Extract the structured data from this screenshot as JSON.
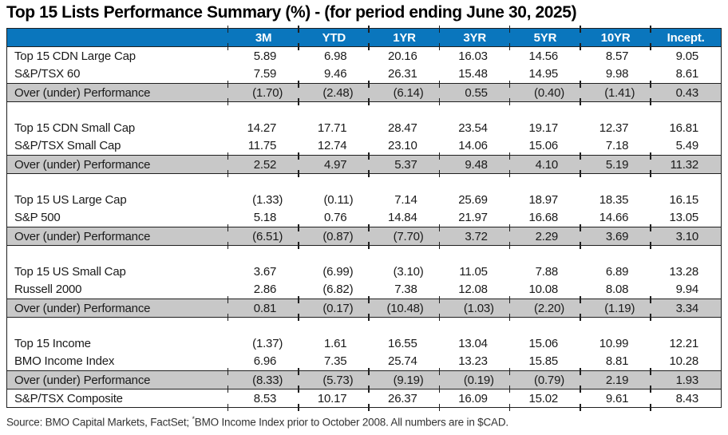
{
  "title": "Top 15 Lists Performance Summary (%) - (for period ending June 30, 2025)",
  "table": {
    "columns": [
      "",
      "3M",
      "YTD",
      "1YR",
      "3YR",
      "5YR",
      "10YR",
      "Incept."
    ],
    "rows": [
      {
        "type": "data",
        "label": "Top 15 CDN Large Cap",
        "values": [
          "5.89",
          "6.98",
          "20.16",
          "16.03",
          "14.56",
          "8.57",
          "9.05"
        ]
      },
      {
        "type": "data",
        "label": "S&P/TSX 60",
        "values": [
          "7.59",
          "9.46",
          "26.31",
          "15.48",
          "14.95",
          "9.98",
          "8.61"
        ]
      },
      {
        "type": "over",
        "label": "Over (under) Performance",
        "values": [
          "(1.70)",
          "(2.48)",
          "(6.14)",
          "0.55",
          "(0.40)",
          "(1.41)",
          "0.43"
        ]
      },
      {
        "type": "spacer"
      },
      {
        "type": "data",
        "label": "Top 15 CDN Small Cap",
        "values": [
          "14.27",
          "17.71",
          "28.47",
          "23.54",
          "19.17",
          "12.37",
          "16.81"
        ]
      },
      {
        "type": "data",
        "label": "S&P/TSX Small Cap",
        "values": [
          "11.75",
          "12.74",
          "23.10",
          "14.06",
          "15.06",
          "7.18",
          "5.49"
        ]
      },
      {
        "type": "over",
        "label": "Over (under) Performance",
        "values": [
          "2.52",
          "4.97",
          "5.37",
          "9.48",
          "4.10",
          "5.19",
          "11.32"
        ]
      },
      {
        "type": "spacer"
      },
      {
        "type": "data",
        "label": "Top 15 US Large Cap",
        "values": [
          "(1.33)",
          "(0.11)",
          "7.14",
          "25.69",
          "18.97",
          "18.35",
          "16.15"
        ]
      },
      {
        "type": "data",
        "label": "S&P 500",
        "values": [
          "5.18",
          "0.76",
          "14.84",
          "21.97",
          "16.68",
          "14.66",
          "13.05"
        ]
      },
      {
        "type": "over",
        "label": "Over (under) Performance",
        "values": [
          "(6.51)",
          "(0.87)",
          "(7.70)",
          "3.72",
          "2.29",
          "3.69",
          "3.10"
        ]
      },
      {
        "type": "spacer"
      },
      {
        "type": "data",
        "label": "Top 15 US Small Cap",
        "values": [
          "3.67",
          "(6.99)",
          "(3.10)",
          "11.05",
          "7.88",
          "6.89",
          "13.28"
        ]
      },
      {
        "type": "data",
        "label": "Russell 2000",
        "values": [
          "2.86",
          "(6.82)",
          "7.38",
          "12.08",
          "10.08",
          "8.08",
          "9.94"
        ]
      },
      {
        "type": "over",
        "label": "Over (under) Performance",
        "values": [
          "0.81",
          "(0.17)",
          "(10.48)",
          "(1.03)",
          "(2.20)",
          "(1.19)",
          "3.34"
        ]
      },
      {
        "type": "spacer"
      },
      {
        "type": "data",
        "label": "Top 15 Income",
        "values": [
          "(1.37)",
          "1.61",
          "16.55",
          "13.04",
          "15.06",
          "10.99",
          "12.21"
        ]
      },
      {
        "type": "data",
        "label": "BMO Income Index",
        "values": [
          "6.96",
          "7.35",
          "25.74",
          "13.23",
          "15.85",
          "8.81",
          "10.28"
        ]
      },
      {
        "type": "over",
        "label": "Over (under) Performance",
        "values": [
          "(8.33)",
          "(5.73)",
          "(9.19)",
          "(0.19)",
          "(0.79)",
          "2.19",
          "1.93"
        ]
      },
      {
        "type": "composite",
        "label": "S&P/TSX Composite",
        "values": [
          "8.53",
          "10.17",
          "26.37",
          "16.09",
          "15.02",
          "9.61",
          "8.43"
        ]
      }
    ]
  },
  "footer": {
    "prefix": "Source: BMO Capital Markets, FactSet; ",
    "asterisk": "*",
    "text": "BMO Income Index prior to October 2008. All numbers are in $CAD."
  },
  "colors": {
    "header_blue": "#0a76bd",
    "over_gray": "#c8c8c8",
    "border": "#1f1f1f"
  }
}
